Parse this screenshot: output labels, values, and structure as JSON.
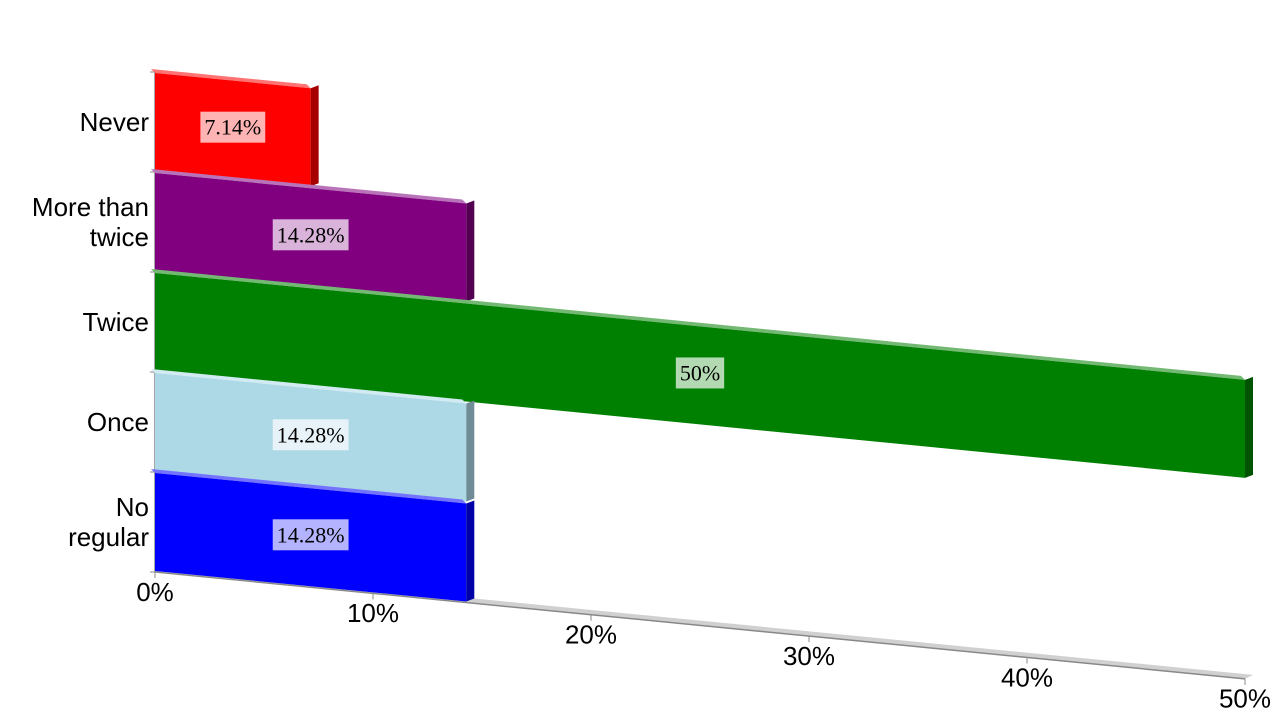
{
  "chart_data": {
    "type": "bar",
    "orientation": "horizontal",
    "categories": [
      "Never",
      "More than twice",
      "Twice",
      "Once",
      "No regular"
    ],
    "values": [
      7.14,
      14.28,
      50,
      14.28,
      14.28
    ],
    "value_labels": [
      "7.14%",
      "14.28%",
      "50%",
      "14.28%",
      "14.28%"
    ],
    "colors": [
      "#ff0000",
      "#800080",
      "#008000",
      "#add8e6",
      "#0000ff"
    ],
    "xlim": [
      0,
      50
    ],
    "xticks": [
      {
        "value": 0,
        "label": "0%"
      },
      {
        "value": 10,
        "label": "10%"
      },
      {
        "value": 20,
        "label": "20%"
      },
      {
        "value": 30,
        "label": "30%"
      },
      {
        "value": 40,
        "label": "40%"
      },
      {
        "value": 50,
        "label": "50%"
      }
    ]
  }
}
